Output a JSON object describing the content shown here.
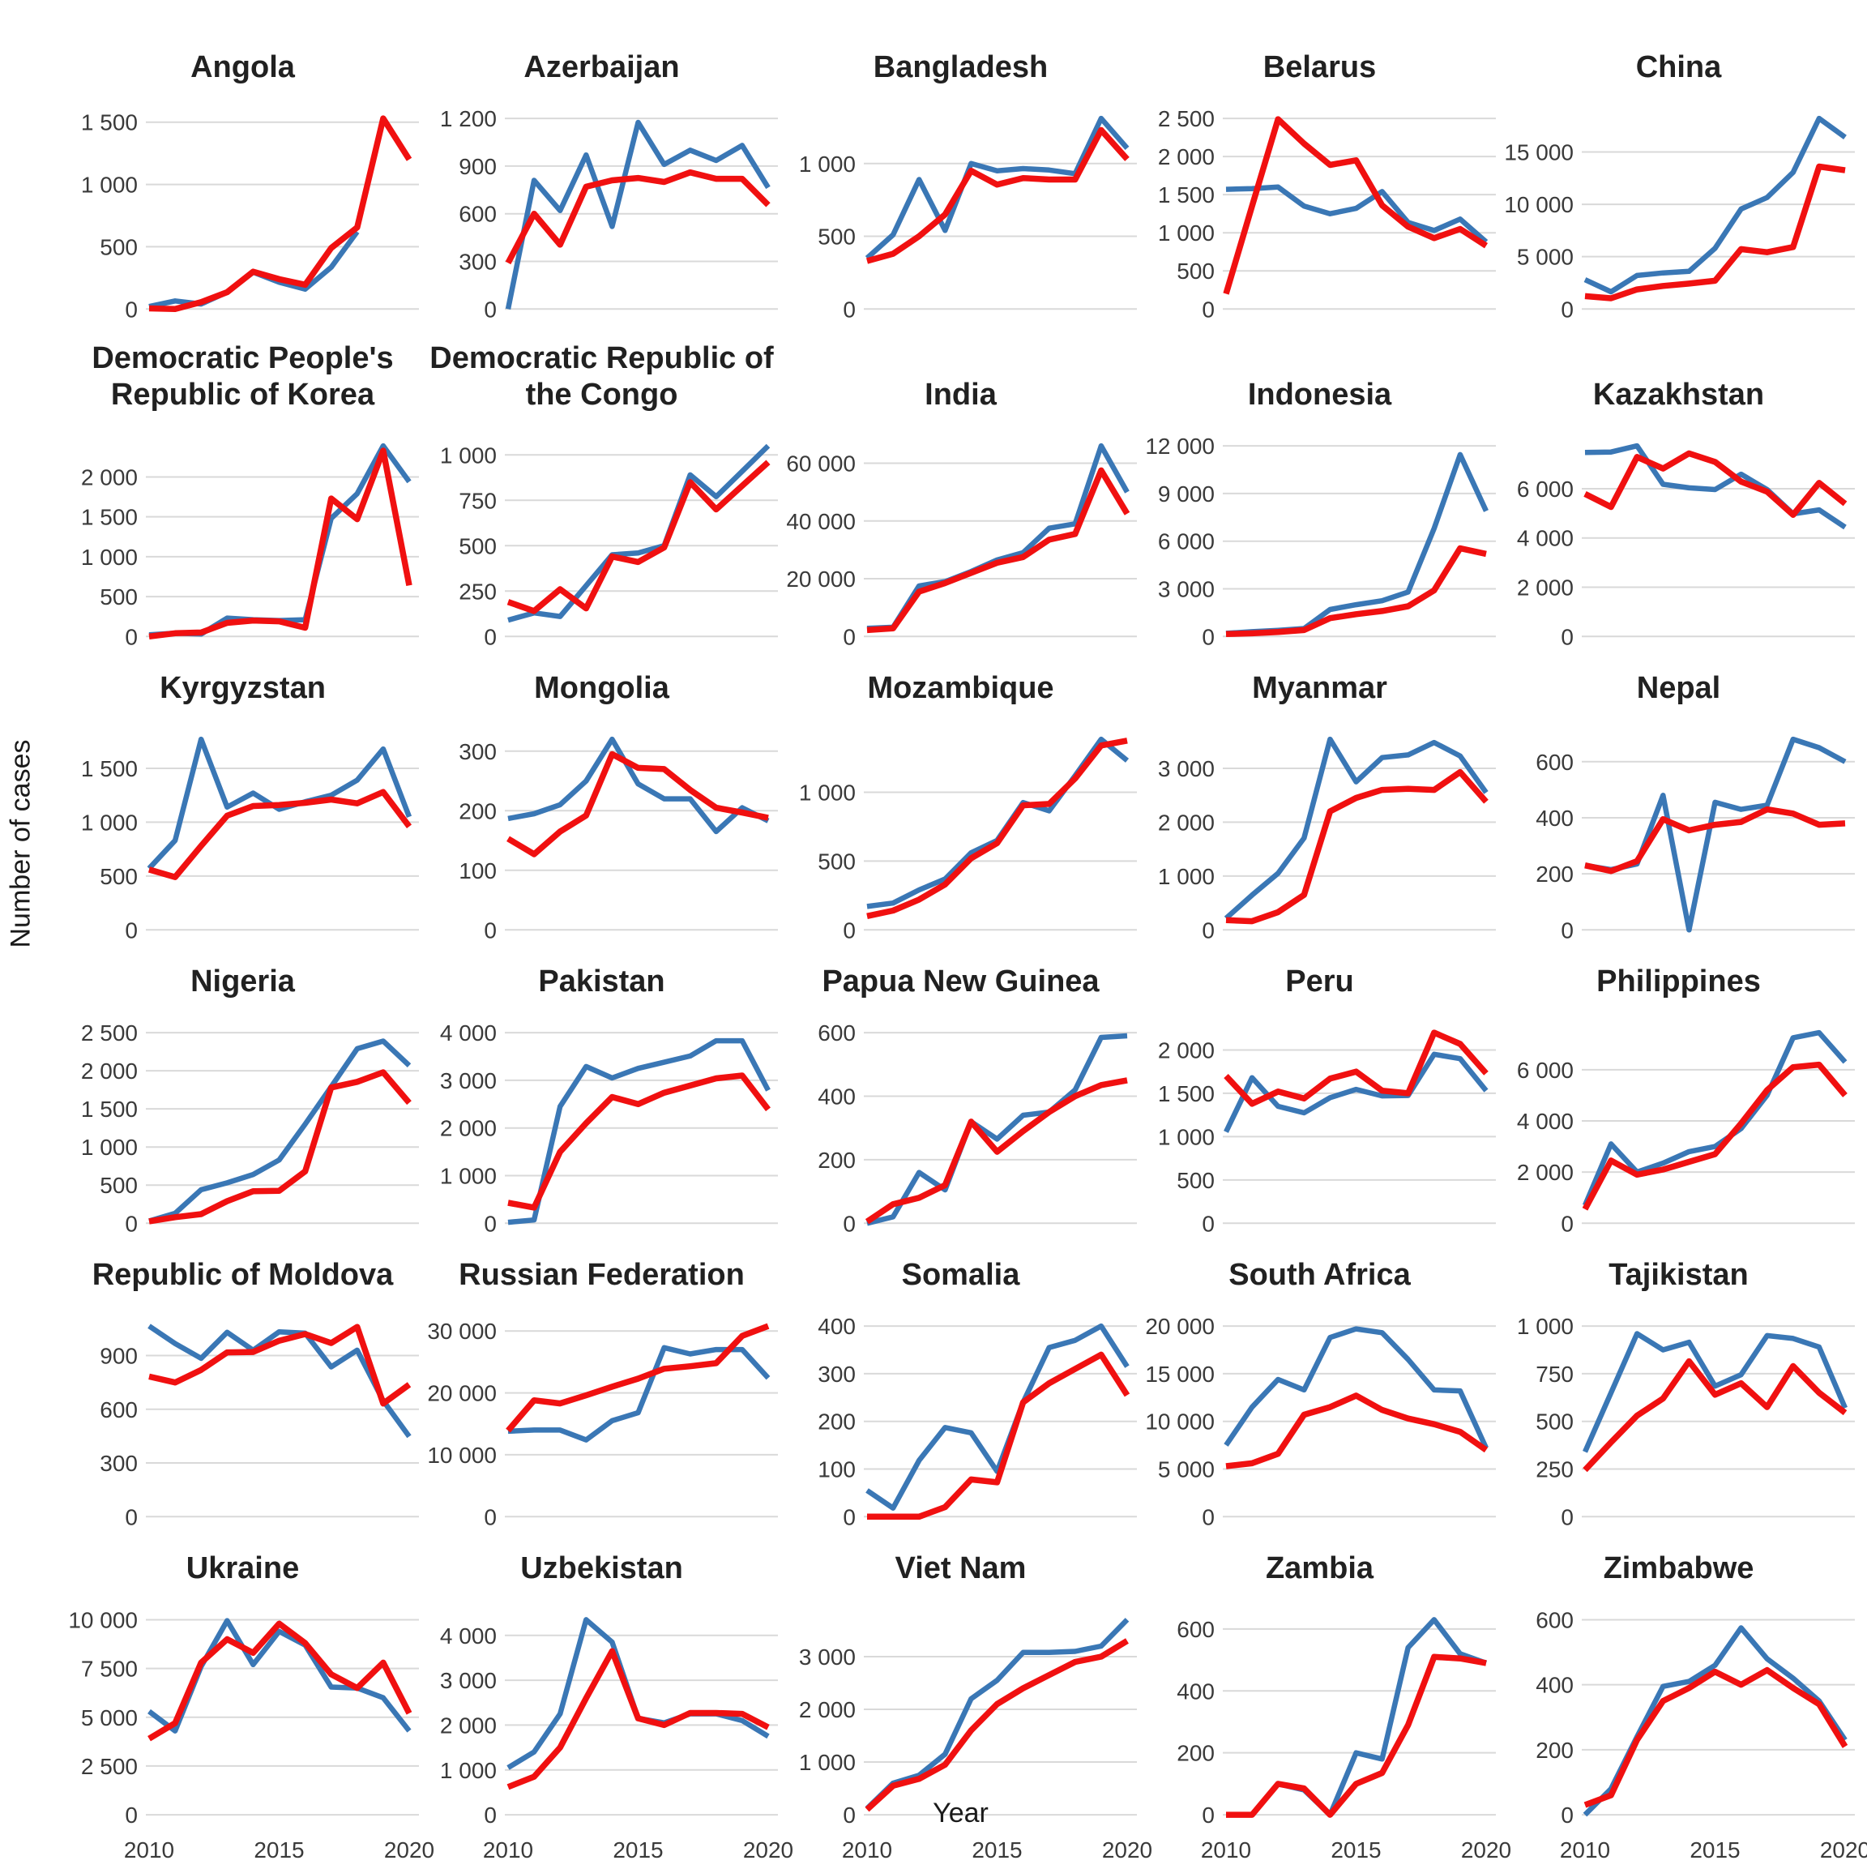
{
  "axis": {
    "y_title": "Number of cases",
    "x_title": "Year"
  },
  "colors": {
    "series_blue": "#3a77b5",
    "series_red": "#f01010",
    "gridline": "#d9d9d9",
    "tick_text": "#3a3a3a",
    "title_text": "#212121"
  },
  "chart_data": {
    "type": "line",
    "x": [
      2010,
      2011,
      2012,
      2013,
      2014,
      2015,
      2016,
      2017,
      2018,
      2019,
      2020
    ],
    "x_ticks": [
      2010,
      2015,
      2020
    ],
    "ylabel": "Number of cases",
    "xlabel": "Year",
    "grid": "horizontal-only",
    "legend": "none",
    "facets": [
      {
        "title": "Angola",
        "yticks": [
          0,
          500,
          1000,
          1500
        ],
        "blue": [
          20,
          65,
          40,
          135,
          295,
          215,
          160,
          335,
          620,
          null,
          null
        ],
        "red": [
          5,
          0,
          55,
          135,
          300,
          240,
          195,
          490,
          655,
          1530,
          1200
        ]
      },
      {
        "title": "Azerbaijan",
        "yticks": [
          0,
          300,
          600,
          900,
          1200
        ],
        "blue": [
          0,
          810,
          620,
          970,
          520,
          1175,
          910,
          1000,
          935,
          1030,
          765
        ],
        "red": [
          290,
          600,
          405,
          770,
          810,
          825,
          800,
          860,
          820,
          820,
          655
        ]
      },
      {
        "title": "Bangladesh",
        "yticks": [
          0,
          500,
          1000
        ],
        "blue": [
          350,
          510,
          890,
          540,
          1000,
          950,
          965,
          955,
          930,
          1310,
          1105
        ],
        "red": [
          330,
          380,
          500,
          650,
          950,
          855,
          900,
          890,
          890,
          1230,
          1030
        ]
      },
      {
        "title": "Belarus",
        "yticks": [
          0,
          500,
          1000,
          1500,
          2000,
          2500
        ],
        "blue": [
          1570,
          1580,
          1600,
          1350,
          1250,
          1320,
          1540,
          1135,
          1030,
          1180,
          880
        ],
        "red": [
          200,
          1350,
          2490,
          2170,
          1890,
          1950,
          1360,
          1080,
          930,
          1050,
          830
        ]
      },
      {
        "title": "China",
        "yticks": [
          0,
          5000,
          10000,
          15000
        ],
        "blue": [
          2800,
          1650,
          3200,
          3450,
          3600,
          5800,
          9550,
          10650,
          13050,
          18200,
          16400
        ],
        "red": [
          1230,
          1030,
          1870,
          2200,
          2430,
          2700,
          5720,
          5420,
          5920,
          13600,
          13250
        ]
      },
      {
        "title": "Democratic People's Republic of Korea",
        "yticks": [
          0,
          500,
          1000,
          1500,
          2000
        ],
        "blue": [
          20,
          40,
          30,
          230,
          210,
          200,
          210,
          1480,
          1790,
          2390,
          1940
        ],
        "red": [
          0,
          40,
          50,
          170,
          200,
          190,
          110,
          1730,
          1470,
          2330,
          640
        ]
      },
      {
        "title": "Democratic Republic of the Congo",
        "yticks": [
          0,
          250,
          500,
          750,
          1000
        ],
        "blue": [
          90,
          130,
          110,
          280,
          450,
          460,
          500,
          890,
          770,
          910,
          1050
        ],
        "red": [
          190,
          140,
          260,
          155,
          440,
          410,
          490,
          850,
          700,
          830,
          960
        ]
      },
      {
        "title": "India",
        "yticks": [
          0,
          20000,
          40000,
          60000
        ],
        "blue": [
          2800,
          3200,
          17500,
          19000,
          22500,
          26500,
          29000,
          37500,
          39000,
          66000,
          50000
        ],
        "red": [
          2200,
          2800,
          15500,
          18500,
          22000,
          25500,
          27500,
          33500,
          35500,
          57500,
          42500
        ]
      },
      {
        "title": "Indonesia",
        "yticks": [
          0,
          3000,
          6000,
          9000,
          12000
        ],
        "blue": [
          200,
          300,
          380,
          500,
          1700,
          2000,
          2250,
          2800,
          6800,
          11450,
          7900
        ],
        "red": [
          150,
          200,
          280,
          400,
          1150,
          1400,
          1600,
          1900,
          2900,
          5550,
          5200
        ]
      },
      {
        "title": "Kazakhstan",
        "yticks": [
          0,
          2000,
          4000,
          6000
        ],
        "blue": [
          7470,
          7490,
          7740,
          6180,
          6035,
          5965,
          6590,
          5965,
          4980,
          5140,
          4435
        ],
        "red": [
          5790,
          5260,
          7290,
          6820,
          7435,
          7090,
          6290,
          5880,
          4940,
          6235,
          5390
        ]
      },
      {
        "title": "Kyrgyzstan",
        "yticks": [
          0,
          500,
          1000,
          1500
        ],
        "blue": [
          570,
          830,
          1770,
          1140,
          1270,
          1120,
          1190,
          1250,
          1390,
          1680,
          1050
        ],
        "red": [
          560,
          490,
          780,
          1060,
          1150,
          1160,
          1180,
          1210,
          1175,
          1280,
          960
        ]
      },
      {
        "title": "Mongolia",
        "yticks": [
          0,
          100,
          200,
          300
        ],
        "blue": [
          187,
          195,
          210,
          250,
          320,
          245,
          220,
          220,
          165,
          205,
          183
        ],
        "red": [
          153,
          127,
          165,
          192,
          295,
          272,
          270,
          235,
          205,
          197,
          188
        ]
      },
      {
        "title": "Mozambique",
        "yticks": [
          0,
          500,
          1000
        ],
        "blue": [
          170,
          195,
          290,
          370,
          560,
          650,
          925,
          865,
          1120,
          1385,
          1230
        ],
        "red": [
          100,
          140,
          220,
          330,
          520,
          630,
          905,
          915,
          1100,
          1340,
          1375
        ]
      },
      {
        "title": "Myanmar",
        "yticks": [
          0,
          1000,
          2000,
          3000
        ],
        "blue": [
          215,
          645,
          1050,
          1705,
          3540,
          2750,
          3200,
          3250,
          3480,
          3230,
          2550
        ],
        "red": [
          180,
          160,
          330,
          650,
          2200,
          2450,
          2600,
          2620,
          2600,
          2930,
          2380
        ]
      },
      {
        "title": "Nepal",
        "yticks": [
          0,
          200,
          400,
          600
        ],
        "blue": [
          230,
          215,
          235,
          480,
          0,
          455,
          430,
          445,
          680,
          650,
          600
        ],
        "red": [
          230,
          210,
          245,
          395,
          355,
          375,
          385,
          430,
          415,
          375,
          380
        ]
      },
      {
        "title": "Nigeria",
        "yticks": [
          0,
          500,
          1000,
          1500,
          2000,
          2500
        ],
        "blue": [
          30,
          130,
          440,
          530,
          640,
          830,
          1300,
          1790,
          2290,
          2390,
          2070
        ],
        "red": [
          25,
          80,
          120,
          290,
          420,
          425,
          680,
          1780,
          1855,
          1980,
          1580
        ]
      },
      {
        "title": "Pakistan",
        "yticks": [
          0,
          1000,
          2000,
          3000,
          4000
        ],
        "blue": [
          20,
          70,
          2450,
          3290,
          3050,
          3250,
          3380,
          3510,
          3830,
          3830,
          2790
        ],
        "red": [
          430,
          330,
          1500,
          2100,
          2650,
          2500,
          2740,
          2890,
          3040,
          3100,
          2390
        ]
      },
      {
        "title": "Papua New Guinea",
        "yticks": [
          0,
          200,
          400,
          600
        ],
        "blue": [
          0,
          20,
          160,
          105,
          320,
          265,
          340,
          350,
          420,
          585,
          590
        ],
        "red": [
          5,
          60,
          80,
          120,
          320,
          225,
          290,
          350,
          400,
          435,
          450
        ]
      },
      {
        "title": "Peru",
        "yticks": [
          0,
          500,
          1000,
          1500,
          2000
        ],
        "blue": [
          1055,
          1680,
          1350,
          1275,
          1450,
          1545,
          1470,
          1475,
          1950,
          1900,
          1530
        ],
        "red": [
          1700,
          1380,
          1520,
          1440,
          1670,
          1750,
          1530,
          1500,
          2200,
          2070,
          1730
        ]
      },
      {
        "title": "Philippines",
        "yticks": [
          0,
          2000,
          4000,
          6000
        ],
        "blue": [
          700,
          3100,
          2000,
          2350,
          2800,
          3000,
          3700,
          5000,
          7250,
          7450,
          6300
        ],
        "red": [
          550,
          2450,
          1900,
          2100,
          2400,
          2700,
          3900,
          5200,
          6100,
          6200,
          5000
        ]
      },
      {
        "title": "Republic of Moldova",
        "yticks": [
          0,
          300,
          600,
          900
        ],
        "blue": [
          1065,
          967,
          885,
          1030,
          930,
          1033,
          1025,
          837,
          930,
          648,
          448
        ],
        "red": [
          783,
          750,
          820,
          918,
          920,
          983,
          1020,
          970,
          1060,
          632,
          738
        ]
      },
      {
        "title": "Russian Federation",
        "yticks": [
          0,
          10000,
          20000,
          30000
        ],
        "blue": [
          13800,
          14000,
          14000,
          12400,
          15500,
          16800,
          27300,
          26300,
          27000,
          27000,
          22400
        ],
        "red": [
          13900,
          18800,
          18300,
          19600,
          21000,
          22300,
          23900,
          24300,
          24800,
          29200,
          30800
        ]
      },
      {
        "title": "Somalia",
        "yticks": [
          0,
          100,
          200,
          300,
          400
        ],
        "blue": [
          55,
          18,
          118,
          187,
          176,
          95,
          240,
          355,
          370,
          400,
          315
        ],
        "red": [
          0,
          0,
          0,
          20,
          78,
          72,
          240,
          280,
          310,
          340,
          255
        ]
      },
      {
        "title": "South Africa",
        "yticks": [
          0,
          5000,
          10000,
          15000,
          20000
        ],
        "blue": [
          7500,
          11500,
          14400,
          13300,
          18800,
          19700,
          19300,
          16500,
          13300,
          13200,
          7200
        ],
        "red": [
          5300,
          5600,
          6600,
          10700,
          11500,
          12700,
          11200,
          10300,
          9700,
          8900,
          7000
        ]
      },
      {
        "title": "Tajikistan",
        "yticks": [
          0,
          250,
          500,
          750,
          1000
        ],
        "blue": [
          340,
          650,
          960,
          875,
          915,
          685,
          745,
          950,
          935,
          890,
          570
        ],
        "red": [
          245,
          390,
          530,
          620,
          815,
          640,
          700,
          575,
          790,
          650,
          545
        ]
      },
      {
        "title": "Ukraine",
        "yticks": [
          0,
          2500,
          5000,
          7500,
          10000
        ],
        "blue": [
          5300,
          4300,
          7600,
          9950,
          7700,
          9400,
          8700,
          6550,
          6500,
          6000,
          4300
        ],
        "red": [
          3900,
          4700,
          7800,
          9000,
          8300,
          9800,
          8800,
          7200,
          6500,
          7800,
          5200
        ]
      },
      {
        "title": "Uzbekistan",
        "yticks": [
          0,
          1000,
          2000,
          3000,
          4000
        ],
        "blue": [
          1050,
          1400,
          2250,
          4350,
          3850,
          2150,
          2050,
          2250,
          2250,
          2100,
          1750
        ],
        "red": [
          620,
          850,
          1500,
          2600,
          3650,
          2150,
          2000,
          2270,
          2270,
          2250,
          1950
        ]
      },
      {
        "title": "Viet Nam",
        "yticks": [
          0,
          1000,
          2000,
          3000
        ],
        "blue": [
          120,
          600,
          750,
          1150,
          2200,
          2550,
          3080,
          3080,
          3100,
          3200,
          3700
        ],
        "red": [
          100,
          550,
          680,
          950,
          1600,
          2100,
          2400,
          2650,
          2900,
          3000,
          3300
        ]
      },
      {
        "title": "Zambia",
        "yticks": [
          0,
          200,
          400,
          600
        ],
        "blue": [
          0,
          0,
          100,
          80,
          0,
          200,
          180,
          540,
          630,
          520,
          490
        ],
        "red": [
          0,
          0,
          100,
          85,
          0,
          100,
          135,
          290,
          510,
          505,
          490
        ]
      },
      {
        "title": "Zimbabwe",
        "yticks": [
          0,
          200,
          400,
          600
        ],
        "blue": [
          0,
          80,
          240,
          395,
          410,
          460,
          575,
          480,
          420,
          350,
          230
        ],
        "red": [
          30,
          60,
          230,
          350,
          390,
          440,
          400,
          445,
          390,
          340,
          210
        ]
      }
    ]
  }
}
